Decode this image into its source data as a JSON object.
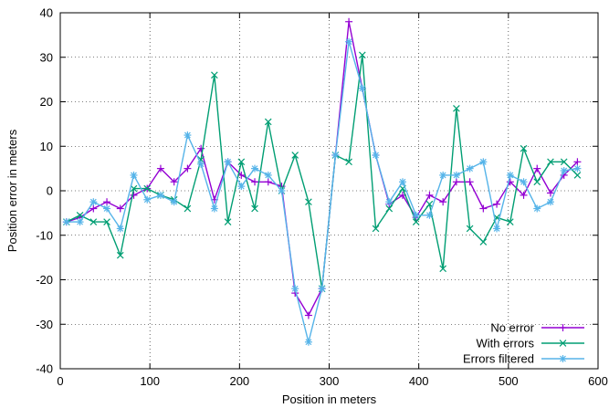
{
  "chart_data": {
    "type": "line",
    "xlabel": "Position in meters",
    "ylabel": "Position error in meters",
    "xlim": [
      0,
      600
    ],
    "ylim": [
      -40,
      40
    ],
    "xticks": [
      0,
      100,
      200,
      300,
      400,
      500,
      600
    ],
    "yticks": [
      -40,
      -30,
      -20,
      -10,
      0,
      10,
      20,
      30,
      40
    ],
    "grid": true,
    "legend_position": "bottom-right",
    "series": [
      {
        "name": "No error",
        "color": "#9400d3",
        "marker": "plus",
        "points": [
          [
            7,
            -7
          ],
          [
            22,
            -6
          ],
          [
            37,
            -4
          ],
          [
            52,
            -2.5
          ],
          [
            67,
            -4
          ],
          [
            82,
            -1
          ],
          [
            97,
            0.5
          ],
          [
            112,
            5
          ],
          [
            127,
            2
          ],
          [
            142,
            5
          ],
          [
            157,
            9.5
          ],
          [
            172,
            -2
          ],
          [
            187,
            6.5
          ],
          [
            202,
            3.5
          ],
          [
            217,
            2
          ],
          [
            232,
            2
          ],
          [
            247,
            1
          ],
          [
            262,
            -23
          ],
          [
            277,
            -28
          ],
          [
            292,
            -22
          ],
          [
            307,
            8
          ],
          [
            322,
            38
          ],
          [
            337,
            23
          ],
          [
            352,
            8
          ],
          [
            367,
            -3
          ],
          [
            382,
            -1
          ],
          [
            397,
            -6
          ],
          [
            412,
            -1
          ],
          [
            427,
            -2.5
          ],
          [
            442,
            2
          ],
          [
            457,
            2
          ],
          [
            472,
            -4
          ],
          [
            487,
            -3
          ],
          [
            502,
            2
          ],
          [
            517,
            -1
          ],
          [
            532,
            5
          ],
          [
            547,
            -0.5
          ],
          [
            562,
            3.5
          ],
          [
            577,
            6.5
          ]
        ]
      },
      {
        "name": "With errors",
        "color": "#009e73",
        "marker": "x",
        "points": [
          [
            7,
            -7
          ],
          [
            22,
            -5.5
          ],
          [
            37,
            -7
          ],
          [
            52,
            -7
          ],
          [
            67,
            -14.5
          ],
          [
            82,
            0.5
          ],
          [
            97,
            0.5
          ],
          [
            112,
            -1
          ],
          [
            127,
            -2
          ],
          [
            142,
            -4
          ],
          [
            157,
            7
          ],
          [
            172,
            26
          ],
          [
            187,
            -7
          ],
          [
            202,
            6.5
          ],
          [
            217,
            -4
          ],
          [
            232,
            15.5
          ],
          [
            247,
            0
          ],
          [
            262,
            8
          ],
          [
            277,
            -2.5
          ],
          [
            292,
            -22
          ],
          [
            307,
            8
          ],
          [
            322,
            6.5
          ],
          [
            337,
            30.5
          ],
          [
            352,
            -8.5
          ],
          [
            367,
            -4
          ],
          [
            382,
            0.5
          ],
          [
            397,
            -7
          ],
          [
            412,
            -3
          ],
          [
            427,
            -17.5
          ],
          [
            442,
            18.5
          ],
          [
            457,
            -8.5
          ],
          [
            472,
            -11.5
          ],
          [
            487,
            -6
          ],
          [
            502,
            -7
          ],
          [
            517,
            9.5
          ],
          [
            532,
            2
          ],
          [
            547,
            6.5
          ],
          [
            562,
            6.5
          ],
          [
            577,
            3.5
          ]
        ]
      },
      {
        "name": "Errors filtered",
        "color": "#56b4e9",
        "marker": "star",
        "points": [
          [
            7,
            -7
          ],
          [
            22,
            -7
          ],
          [
            37,
            -2.5
          ],
          [
            52,
            -4
          ],
          [
            67,
            -8.5
          ],
          [
            82,
            3.5
          ],
          [
            97,
            -2
          ],
          [
            112,
            -1
          ],
          [
            127,
            -2.5
          ],
          [
            142,
            12.5
          ],
          [
            157,
            6
          ],
          [
            172,
            -4
          ],
          [
            187,
            6.5
          ],
          [
            202,
            1
          ],
          [
            217,
            5
          ],
          [
            232,
            3.5
          ],
          [
            247,
            0
          ],
          [
            262,
            -22
          ],
          [
            277,
            -34
          ],
          [
            292,
            -22
          ],
          [
            307,
            8
          ],
          [
            322,
            33.5
          ],
          [
            337,
            23
          ],
          [
            352,
            8
          ],
          [
            367,
            -2.5
          ],
          [
            382,
            2
          ],
          [
            397,
            -5.5
          ],
          [
            412,
            -5.5
          ],
          [
            427,
            3.5
          ],
          [
            442,
            3.5
          ],
          [
            457,
            5
          ],
          [
            472,
            6.5
          ],
          [
            487,
            -8.5
          ],
          [
            502,
            3.5
          ],
          [
            517,
            2
          ],
          [
            532,
            -4
          ],
          [
            547,
            -2.5
          ],
          [
            562,
            4.5
          ],
          [
            577,
            5
          ]
        ]
      }
    ]
  }
}
